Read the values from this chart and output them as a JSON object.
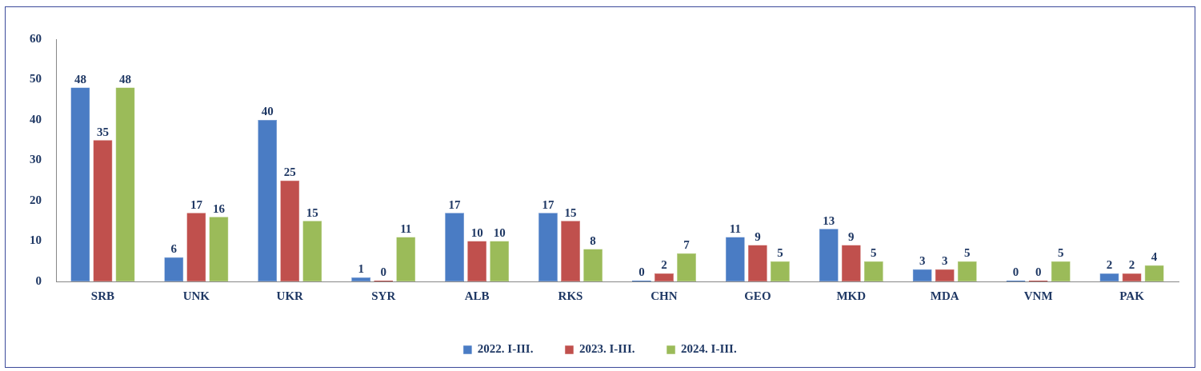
{
  "chart_data": {
    "type": "bar",
    "categories": [
      "SRB",
      "UNK",
      "UKR",
      "SYR",
      "ALB",
      "RKS",
      "CHN",
      "GEO",
      "MKD",
      "MDA",
      "VNM",
      "PAK"
    ],
    "series": [
      {
        "name": "2022. I-III.",
        "color": "#4a7cc4",
        "values": [
          48,
          6,
          40,
          1,
          17,
          17,
          0,
          11,
          13,
          3,
          0,
          2
        ]
      },
      {
        "name": "2023. I-III.",
        "color": "#c0504d",
        "values": [
          35,
          17,
          25,
          0,
          10,
          15,
          2,
          9,
          9,
          3,
          0,
          2
        ]
      },
      {
        "name": "2024. I-III.",
        "color": "#9bbb59",
        "values": [
          48,
          16,
          15,
          11,
          10,
          8,
          7,
          5,
          5,
          5,
          5,
          4
        ]
      }
    ],
    "ylim": [
      0,
      60
    ],
    "yticks": [
      0,
      10,
      20,
      30,
      40,
      50,
      60
    ],
    "grid": false,
    "legend": "bottom",
    "data_labels": true
  }
}
